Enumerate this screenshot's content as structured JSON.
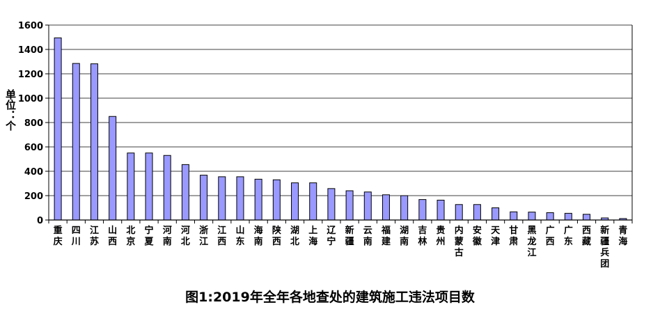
{
  "chart_data": {
    "type": "bar",
    "title": "图1:2019年全年各地查处的建筑施工违法项目数",
    "ylabel": "单位：个",
    "xlabel": "",
    "ylim": [
      0,
      1600
    ],
    "yticks": [
      0,
      200,
      400,
      600,
      800,
      1000,
      1200,
      1400,
      1600
    ],
    "grid": true,
    "legend": "none",
    "categories": [
      "重庆",
      "四川",
      "江苏",
      "山西",
      "北京",
      "宁夏",
      "河南",
      "河北",
      "浙江",
      "江西",
      "山东",
      "海南",
      "陕西",
      "湖北",
      "上海",
      "辽宁",
      "新疆",
      "云南",
      "福建",
      "湖南",
      "吉林",
      "贵州",
      "内蒙古",
      "安徽",
      "天津",
      "甘肃",
      "黑龙江",
      "广西",
      "广东",
      "西藏",
      "新疆兵团",
      "青海"
    ],
    "values": [
      1495,
      1285,
      1282,
      850,
      550,
      550,
      530,
      455,
      368,
      355,
      355,
      335,
      330,
      305,
      305,
      258,
      240,
      230,
      207,
      200,
      168,
      163,
      127,
      127,
      100,
      67,
      65,
      60,
      55,
      47,
      17,
      12
    ],
    "colors": {
      "bar": "#9999ff",
      "bar_stroke": "#000000",
      "grid": "#000000",
      "axis": "#000000"
    }
  }
}
